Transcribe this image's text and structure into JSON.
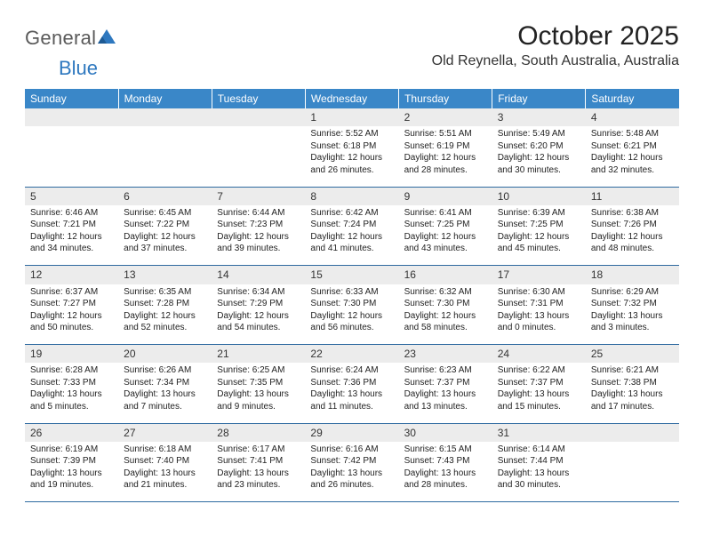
{
  "brand": {
    "text1": "General",
    "text2": "Blue",
    "shape_color": "#2e78bf",
    "text1_color": "#5a5a5a"
  },
  "title": "October 2025",
  "location": "Old Reynella, South Australia, Australia",
  "colors": {
    "header_bg": "#3a87c8",
    "header_text": "#ffffff",
    "daynum_bg": "#ececec",
    "row_divider": "#2e6aa0",
    "page_bg": "#ffffff"
  },
  "day_headers": [
    "Sunday",
    "Monday",
    "Tuesday",
    "Wednesday",
    "Thursday",
    "Friday",
    "Saturday"
  ],
  "weeks": [
    [
      null,
      null,
      null,
      {
        "n": "1",
        "sunrise": "5:52 AM",
        "sunset": "6:18 PM",
        "daylight": "12 hours and 26 minutes."
      },
      {
        "n": "2",
        "sunrise": "5:51 AM",
        "sunset": "6:19 PM",
        "daylight": "12 hours and 28 minutes."
      },
      {
        "n": "3",
        "sunrise": "5:49 AM",
        "sunset": "6:20 PM",
        "daylight": "12 hours and 30 minutes."
      },
      {
        "n": "4",
        "sunrise": "5:48 AM",
        "sunset": "6:21 PM",
        "daylight": "12 hours and 32 minutes."
      }
    ],
    [
      {
        "n": "5",
        "sunrise": "6:46 AM",
        "sunset": "7:21 PM",
        "daylight": "12 hours and 34 minutes."
      },
      {
        "n": "6",
        "sunrise": "6:45 AM",
        "sunset": "7:22 PM",
        "daylight": "12 hours and 37 minutes."
      },
      {
        "n": "7",
        "sunrise": "6:44 AM",
        "sunset": "7:23 PM",
        "daylight": "12 hours and 39 minutes."
      },
      {
        "n": "8",
        "sunrise": "6:42 AM",
        "sunset": "7:24 PM",
        "daylight": "12 hours and 41 minutes."
      },
      {
        "n": "9",
        "sunrise": "6:41 AM",
        "sunset": "7:25 PM",
        "daylight": "12 hours and 43 minutes."
      },
      {
        "n": "10",
        "sunrise": "6:39 AM",
        "sunset": "7:25 PM",
        "daylight": "12 hours and 45 minutes."
      },
      {
        "n": "11",
        "sunrise": "6:38 AM",
        "sunset": "7:26 PM",
        "daylight": "12 hours and 48 minutes."
      }
    ],
    [
      {
        "n": "12",
        "sunrise": "6:37 AM",
        "sunset": "7:27 PM",
        "daylight": "12 hours and 50 minutes."
      },
      {
        "n": "13",
        "sunrise": "6:35 AM",
        "sunset": "7:28 PM",
        "daylight": "12 hours and 52 minutes."
      },
      {
        "n": "14",
        "sunrise": "6:34 AM",
        "sunset": "7:29 PM",
        "daylight": "12 hours and 54 minutes."
      },
      {
        "n": "15",
        "sunrise": "6:33 AM",
        "sunset": "7:30 PM",
        "daylight": "12 hours and 56 minutes."
      },
      {
        "n": "16",
        "sunrise": "6:32 AM",
        "sunset": "7:30 PM",
        "daylight": "12 hours and 58 minutes."
      },
      {
        "n": "17",
        "sunrise": "6:30 AM",
        "sunset": "7:31 PM",
        "daylight": "13 hours and 0 minutes."
      },
      {
        "n": "18",
        "sunrise": "6:29 AM",
        "sunset": "7:32 PM",
        "daylight": "13 hours and 3 minutes."
      }
    ],
    [
      {
        "n": "19",
        "sunrise": "6:28 AM",
        "sunset": "7:33 PM",
        "daylight": "13 hours and 5 minutes."
      },
      {
        "n": "20",
        "sunrise": "6:26 AM",
        "sunset": "7:34 PM",
        "daylight": "13 hours and 7 minutes."
      },
      {
        "n": "21",
        "sunrise": "6:25 AM",
        "sunset": "7:35 PM",
        "daylight": "13 hours and 9 minutes."
      },
      {
        "n": "22",
        "sunrise": "6:24 AM",
        "sunset": "7:36 PM",
        "daylight": "13 hours and 11 minutes."
      },
      {
        "n": "23",
        "sunrise": "6:23 AM",
        "sunset": "7:37 PM",
        "daylight": "13 hours and 13 minutes."
      },
      {
        "n": "24",
        "sunrise": "6:22 AM",
        "sunset": "7:37 PM",
        "daylight": "13 hours and 15 minutes."
      },
      {
        "n": "25",
        "sunrise": "6:21 AM",
        "sunset": "7:38 PM",
        "daylight": "13 hours and 17 minutes."
      }
    ],
    [
      {
        "n": "26",
        "sunrise": "6:19 AM",
        "sunset": "7:39 PM",
        "daylight": "13 hours and 19 minutes."
      },
      {
        "n": "27",
        "sunrise": "6:18 AM",
        "sunset": "7:40 PM",
        "daylight": "13 hours and 21 minutes."
      },
      {
        "n": "28",
        "sunrise": "6:17 AM",
        "sunset": "7:41 PM",
        "daylight": "13 hours and 23 minutes."
      },
      {
        "n": "29",
        "sunrise": "6:16 AM",
        "sunset": "7:42 PM",
        "daylight": "13 hours and 26 minutes."
      },
      {
        "n": "30",
        "sunrise": "6:15 AM",
        "sunset": "7:43 PM",
        "daylight": "13 hours and 28 minutes."
      },
      {
        "n": "31",
        "sunrise": "6:14 AM",
        "sunset": "7:44 PM",
        "daylight": "13 hours and 30 minutes."
      },
      null
    ]
  ],
  "labels": {
    "sunrise_prefix": "Sunrise: ",
    "sunset_prefix": "Sunset: ",
    "daylight_prefix": "Daylight: "
  }
}
